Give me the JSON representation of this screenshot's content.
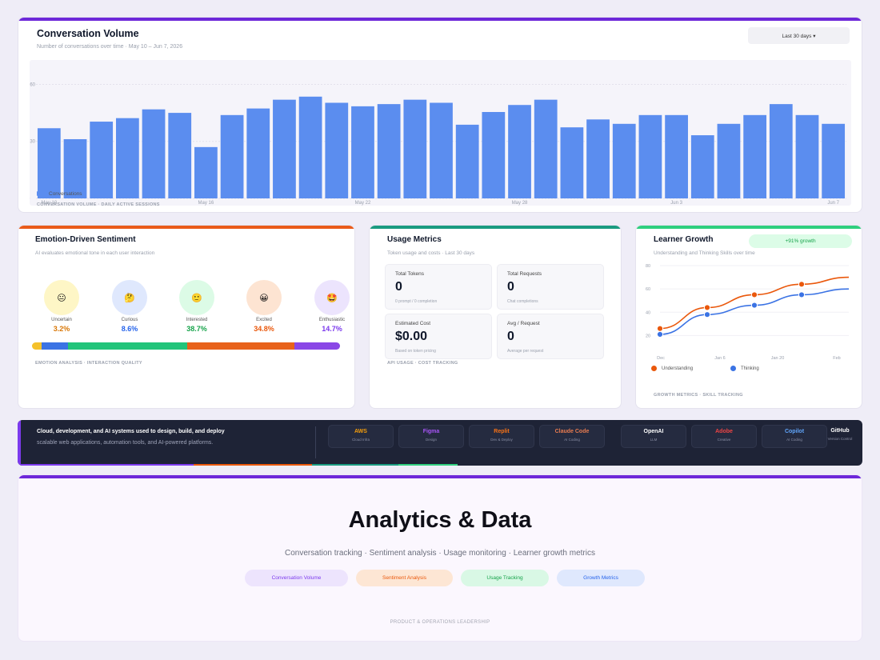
{
  "conversation": {
    "title": "Conversation Volume",
    "subtitle": "Number of conversations over time · May 10 – Jun 7, 2026",
    "range_button": "Last 30 days ▾",
    "legend": "Conversations",
    "footer": "CONVERSATION VOLUME · DAILY ACTIVE SESSIONS",
    "bar_color": "#5b8def"
  },
  "chart_data": {
    "type": "bar",
    "categories": [
      "May 10",
      "",
      "",
      "",
      "",
      "",
      "May 16",
      "",
      "",
      "",
      "",
      "",
      "May 22",
      "",
      "",
      "",
      "",
      "",
      "May 28",
      "",
      "",
      "",
      "",
      "",
      "Jun 3",
      "",
      "",
      "",
      "",
      "",
      "Jun 7"
    ],
    "x_tick_labels": [
      "May 10",
      "May 16",
      "May 22",
      "May 28",
      "Jun 3",
      "Jun 7"
    ],
    "y_tick_labels": [
      "0",
      "130",
      "260"
    ],
    "ylim": [
      0,
      290
    ],
    "series": [
      {
        "name": "Conversations",
        "values": [
          160,
          135,
          175,
          183,
          203,
          195,
          117,
          190,
          205,
          225,
          232,
          218,
          210,
          215,
          225,
          218,
          168,
          197,
          213,
          225,
          162,
          180,
          170,
          190,
          190,
          144,
          170,
          190,
          215,
          190,
          170
        ]
      }
    ]
  },
  "sentiment": {
    "title": "Emotion-Driven Sentiment",
    "subtitle": "AI evaluates emotional tone in each user interaction",
    "footer": "EMOTION ANALYSIS · INTERACTION QUALITY",
    "emotions": [
      {
        "label": "Uncertain",
        "pct": "3.2%",
        "value": 3.2,
        "icon": "😐",
        "bg": "#fef6c6",
        "color": "#d97706",
        "bar": "#f5c12b"
      },
      {
        "label": "Curious",
        "pct": "8.6%",
        "value": 8.6,
        "icon": "🤔",
        "bg": "#dfe8fd",
        "color": "#2563eb",
        "bar": "#3b73e4"
      },
      {
        "label": "Interested",
        "pct": "38.7%",
        "value": 38.7,
        "icon": "🙂",
        "bg": "#dcfbe6",
        "color": "#16a34a",
        "bar": "#22c47a"
      },
      {
        "label": "Excited",
        "pct": "34.8%",
        "value": 34.8,
        "icon": "😀",
        "bg": "#fde4d2",
        "color": "#ea580c",
        "bar": "#e8621b"
      },
      {
        "label": "Enthusiastic",
        "pct": "14.7%",
        "value": 14.7,
        "icon": "🤩",
        "bg": "#ece4fd",
        "color": "#7c3aed",
        "bar": "#8a47e6"
      }
    ]
  },
  "usage": {
    "title": "Usage Metrics",
    "subtitle": "Token usage and costs · Last 30 days",
    "footer": "API USAGE · COST TRACKING",
    "metrics": [
      {
        "label": "Total Tokens",
        "value": "0",
        "sub": "0 prompt / 0 completion"
      },
      {
        "label": "Total Requests",
        "value": "0",
        "sub": "Chat completions"
      },
      {
        "label": "Estimated Cost",
        "value": "$0.00",
        "sub": "Based on token pricing"
      },
      {
        "label": "Avg / Request",
        "value": "0",
        "sub": "Average per request"
      }
    ]
  },
  "learner": {
    "title": "Learner Growth",
    "subtitle": "Understanding and Thinking Skills over time",
    "badge": "+91% growth",
    "footer": "GROWTH METRICS · SKILL TRACKING",
    "y_ticks": [
      "80",
      "60",
      "40",
      "20"
    ],
    "x_ticks": [
      "Dec",
      "Jan 6",
      "Jan 20",
      "Feb"
    ],
    "series": [
      {
        "name": "Understanding",
        "color": "#ea580c",
        "values": [
          26,
          44,
          55,
          64,
          70
        ]
      },
      {
        "name": "Thinking",
        "color": "#3b73e4",
        "values": [
          21,
          38,
          46,
          55,
          60
        ]
      }
    ]
  },
  "tools": {
    "title": "Cloud, development, and AI systems used to design, build, and deploy",
    "subtitle": "scalable web applications, automation tools, and AI-powered platforms.",
    "items": [
      {
        "name": "AWS",
        "desc": "Cloud Infra",
        "color": "#f59e0b"
      },
      {
        "name": "Figma",
        "desc": "Design",
        "color": "#a855f7"
      },
      {
        "name": "Replit",
        "desc": "Dev & Deploy",
        "color": "#f97316"
      },
      {
        "name": "Claude Code",
        "desc": "AI Coding",
        "color": "#e87b4f"
      },
      {
        "name": "OpenAI",
        "desc": "LLM",
        "color": "#ffffff"
      },
      {
        "name": "Adobe",
        "desc": "Creative",
        "color": "#ef4444"
      },
      {
        "name": "Copilot",
        "desc": "AI Coding",
        "color": "#60a5fa"
      },
      {
        "name": "GitHub",
        "desc": "Version Control",
        "color": "#ffffff"
      }
    ]
  },
  "analytics": {
    "title": "Analytics & Data",
    "subtitle": "Conversation tracking · Sentiment analysis · Usage monitoring · Learner growth metrics",
    "chips": [
      {
        "label": "Conversation Volume",
        "bg": "#ede4fd",
        "color": "#7c3aed"
      },
      {
        "label": "Sentiment Analysis",
        "bg": "#fde6d4",
        "color": "#ea580c"
      },
      {
        "label": "Usage Tracking",
        "bg": "#d9f8e5",
        "color": "#16a34a"
      },
      {
        "label": "Growth Metrics",
        "bg": "#dfe8fd",
        "color": "#2563eb"
      }
    ],
    "footer": "PRODUCT & OPERATIONS LEADERSHIP"
  }
}
